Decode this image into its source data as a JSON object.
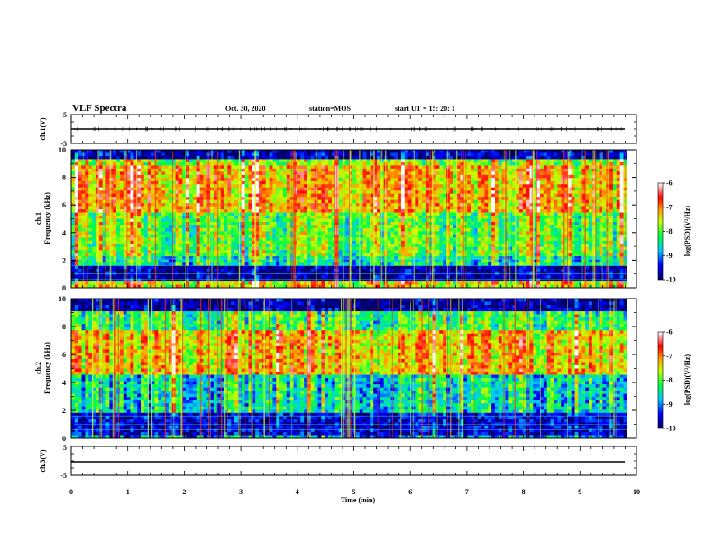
{
  "header": {
    "title": "VLF Spectra",
    "date": "Oct. 30, 2020",
    "station": "station=MOS",
    "start": "start  UT =   15: 20: 1"
  },
  "chart_data": [
    {
      "type": "line",
      "name": "ch1-waveform",
      "ylabel": "ch.1(V)",
      "ylim": [
        -5,
        5
      ],
      "yticks": [
        "5",
        "-5"
      ],
      "xlim": [
        0,
        10
      ],
      "values_note": "",
      "level": 0
    },
    {
      "type": "heatmap",
      "name": "ch1-spectrogram",
      "ylabel_top": "ch.1",
      "ylabel": "Frequency  (kHz)",
      "ylim": [
        0,
        10
      ],
      "yticks": [
        "0",
        "2",
        "4",
        "6",
        "8",
        "10"
      ],
      "xlim": [
        0,
        9.83
      ],
      "colorbar": {
        "label": "log(PSD)(V²/Hz)",
        "range": [
          -10,
          -6
        ],
        "ticks": [
          "-6",
          "-7",
          "-8",
          "-9",
          "-10"
        ]
      },
      "bands": [
        {
          "from": 0,
          "to": 0.4,
          "level": -7.5
        },
        {
          "from": 0.4,
          "to": 1.5,
          "level": -9.8
        },
        {
          "from": 1.5,
          "to": 2.2,
          "level": -8.5
        },
        {
          "from": 2.2,
          "to": 5.5,
          "level": -8.0
        },
        {
          "from": 5.5,
          "to": 8.8,
          "level": -7.2
        },
        {
          "from": 8.8,
          "to": 9.3,
          "level": -7.8
        },
        {
          "from": 9.3,
          "to": 10,
          "level": -9.7
        }
      ]
    },
    {
      "type": "heatmap",
      "name": "ch2-spectrogram",
      "ylabel_top": "ch.2",
      "ylabel": "Frequency  (kHz)",
      "ylim": [
        0,
        10
      ],
      "yticks": [
        "0",
        "2",
        "4",
        "6",
        "8",
        "10"
      ],
      "xlim": [
        0,
        9.83
      ],
      "colorbar": {
        "label": "log(PSD)(V²/Hz)",
        "range": [
          -10,
          -6
        ],
        "ticks": [
          "-6",
          "-7",
          "-8",
          "-9",
          "-10"
        ]
      },
      "bands": [
        {
          "from": 0,
          "to": 0.3,
          "level": -9.0
        },
        {
          "from": 0.3,
          "to": 1.8,
          "level": -9.6
        },
        {
          "from": 1.8,
          "to": 4.5,
          "level": -8.6
        },
        {
          "from": 4.5,
          "to": 7.8,
          "level": -7.3
        },
        {
          "from": 7.8,
          "to": 9.2,
          "level": -8.2
        },
        {
          "from": 9.2,
          "to": 10,
          "level": -9.8
        }
      ]
    },
    {
      "type": "line",
      "name": "ch3-waveform",
      "ylabel": "ch.3(V)",
      "ylim": [
        -5,
        5
      ],
      "yticks": [
        "5",
        "-5"
      ],
      "xlim": [
        0,
        10
      ],
      "level": 0
    }
  ],
  "xaxis": {
    "label": "Time  (min)",
    "range": [
      0,
      10
    ],
    "ticks": [
      "0",
      "1",
      "2",
      "3",
      "4",
      "5",
      "6",
      "7",
      "8",
      "9",
      "10"
    ]
  }
}
